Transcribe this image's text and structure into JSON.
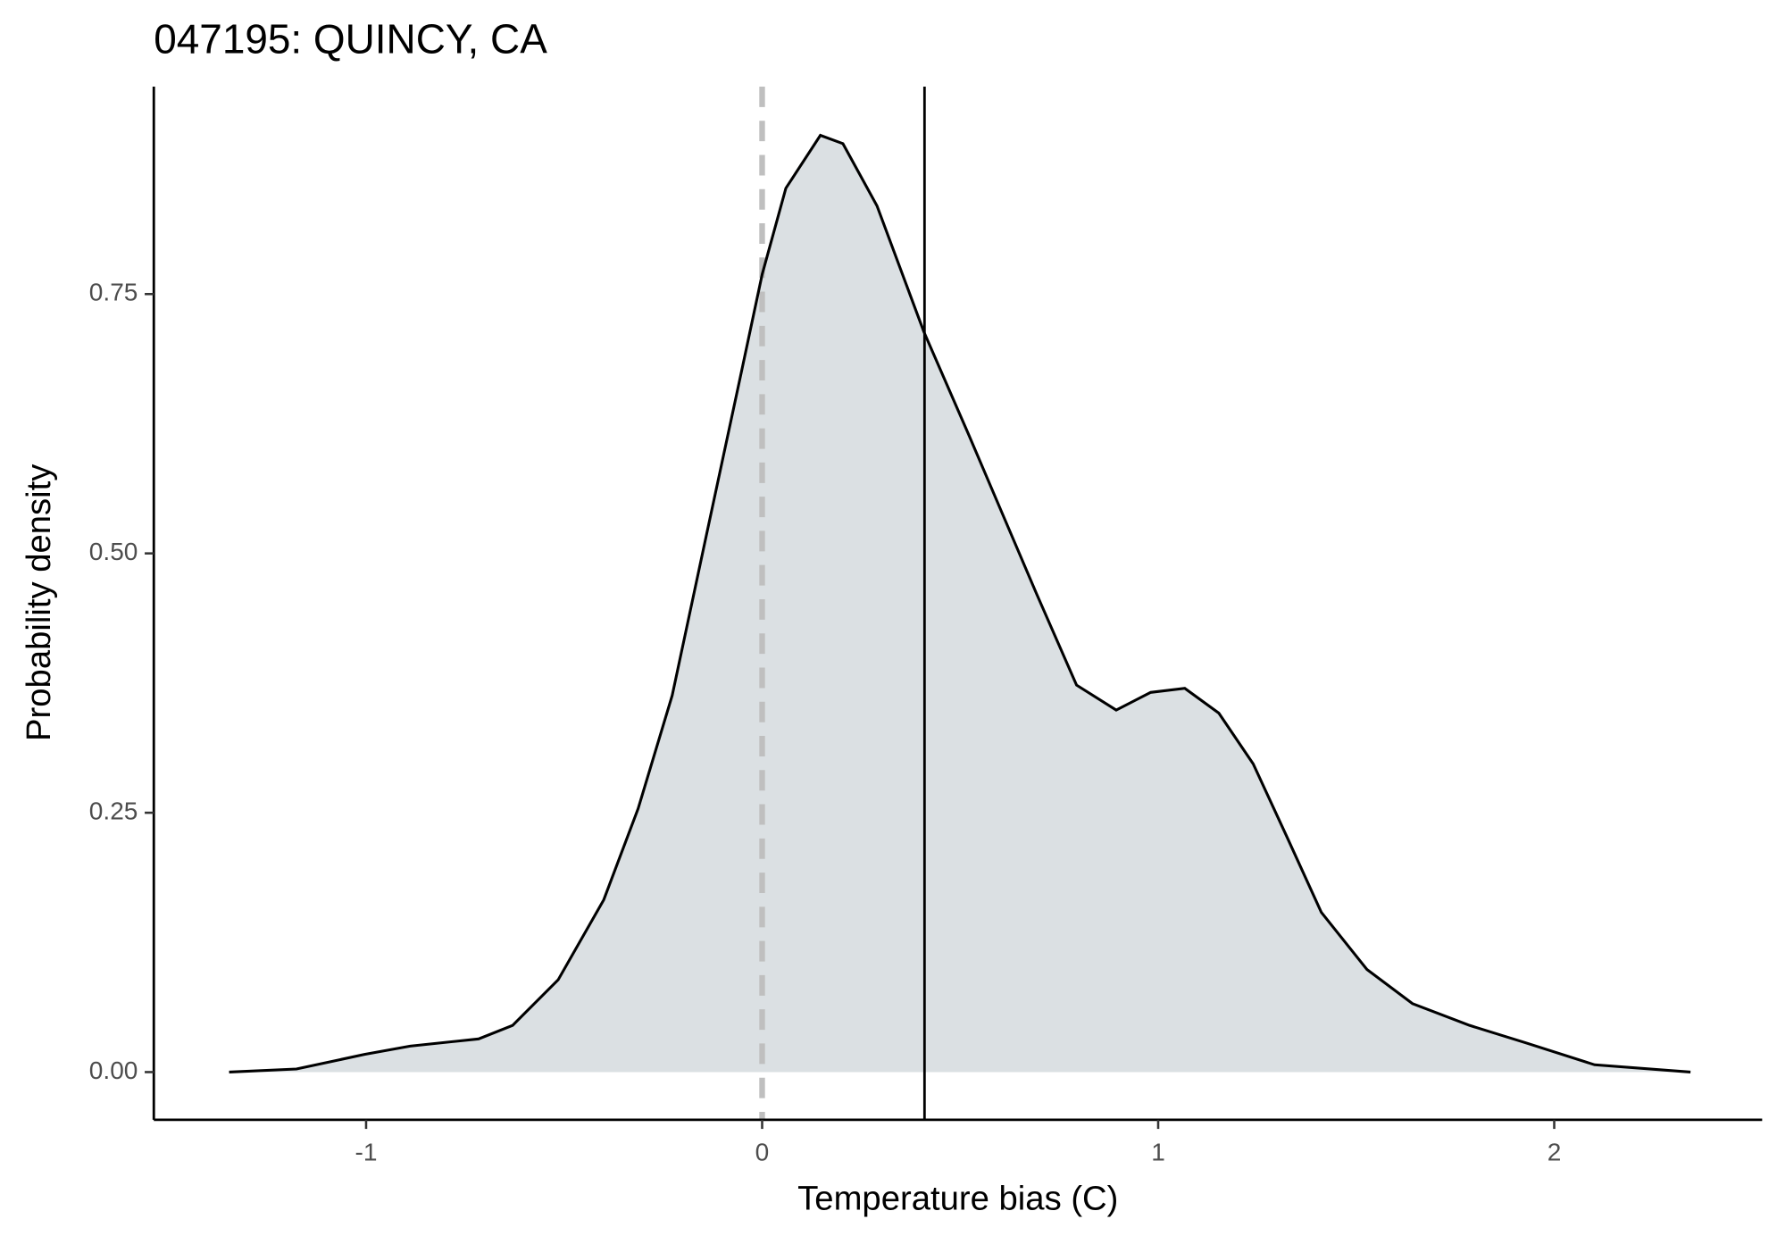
{
  "chart_data": {
    "type": "density",
    "title": "047195: QUINCY, CA",
    "xlabel": "Temperature bias (C)",
    "ylabel": "Probability density",
    "x": [
      -1.346,
      -1.176,
      -1.004,
      -0.889,
      -0.716,
      -0.63,
      -0.515,
      -0.4,
      -0.313,
      -0.227,
      -0.141,
      -0.055,
      0,
      0.06,
      0.147,
      0.204,
      0.29,
      0.408,
      0.521,
      0.607,
      0.693,
      0.794,
      0.894,
      0.981,
      1.067,
      1.153,
      1.24,
      1.326,
      1.412,
      1.527,
      1.642,
      1.786,
      1.93,
      2.102,
      2.344
    ],
    "y": [
      0,
      0.003,
      0.017,
      0.025,
      0.032,
      0.045,
      0.089,
      0.166,
      0.254,
      0.363,
      0.517,
      0.67,
      0.769,
      0.852,
      0.903,
      0.895,
      0.835,
      0.714,
      0.615,
      0.538,
      0.461,
      0.373,
      0.349,
      0.366,
      0.37,
      0.346,
      0.297,
      0.226,
      0.154,
      0.099,
      0.066,
      0.045,
      0.028,
      0.007,
      0
    ],
    "fill": "#dbe0e3",
    "color": "#000000",
    "vlines": [
      {
        "x": 0,
        "style": "dashed",
        "color": "#bfbfbf"
      },
      {
        "x": 0.41,
        "style": "solid",
        "color": "#000000"
      }
    ],
    "xlim": [
      -1.536,
      2.525
    ],
    "ylim": [
      -0.046,
      0.95
    ],
    "xticks": [
      -1,
      0,
      1,
      2
    ],
    "yticks": [
      {
        "value": 0,
        "label": "0.00"
      },
      {
        "value": 0.25,
        "label": "0.25"
      },
      {
        "value": 0.5,
        "label": "0.50"
      },
      {
        "value": 0.75,
        "label": "0.75"
      }
    ]
  }
}
